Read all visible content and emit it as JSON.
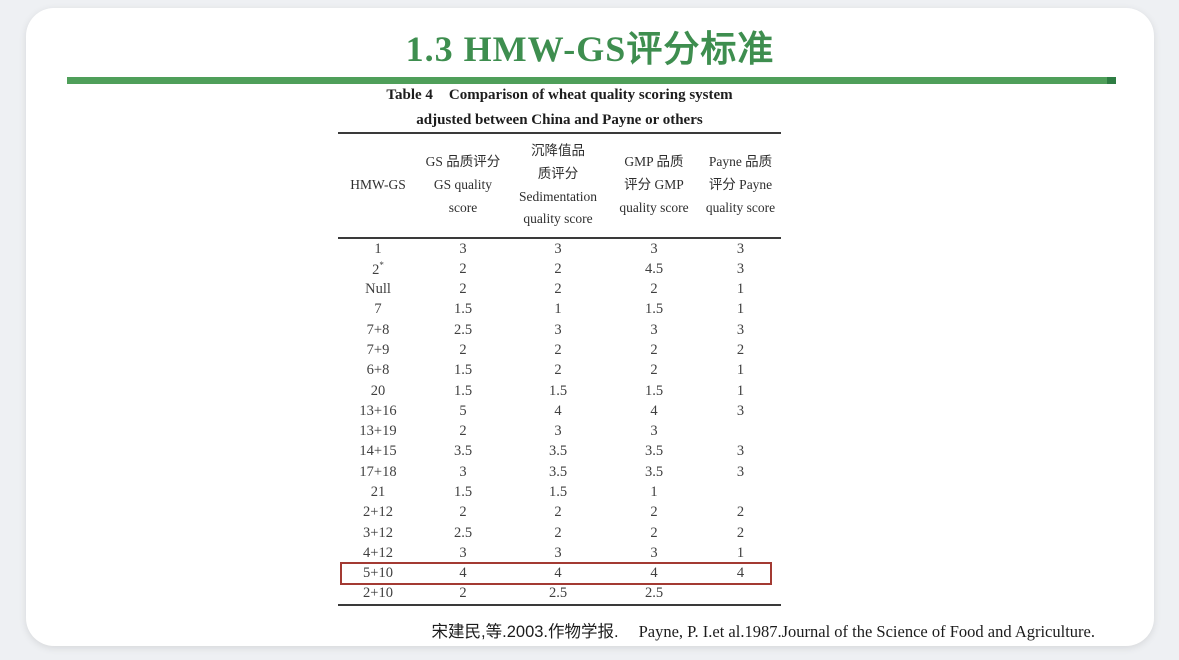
{
  "slide": {
    "title": "1.3 HMW-GS评分标准",
    "citation_cn": "宋建民,等.2003.作物学报.",
    "citation_en": "Payne, P. I.et al.1987.Journal of the Science of Food and Agriculture."
  },
  "table": {
    "caption_label": "Table 4",
    "caption_title": "Comparison of wheat quality scoring system",
    "caption_line2": "adjusted between China and Payne or others",
    "headers": [
      "HMW-GS",
      "GS 品质评分\nGS quality\nscore",
      "沉降值品\n质评分\nSedimentation\nquality score",
      "GMP 品质\n评分 GMP\nquality score",
      "Payne 品质\n评分 Payne\nquality score"
    ],
    "rows": [
      {
        "label": "1",
        "values": [
          "3",
          "3",
          "3",
          "3"
        ],
        "highlight": false
      },
      {
        "label": "2",
        "sup": "*",
        "values": [
          "2",
          "2",
          "4.5",
          "3"
        ],
        "highlight": false
      },
      {
        "label": "Null",
        "values": [
          "2",
          "2",
          "2",
          "1"
        ],
        "highlight": false
      },
      {
        "label": "7",
        "values": [
          "1.5",
          "1",
          "1.5",
          "1"
        ],
        "highlight": false
      },
      {
        "label": "7+8",
        "values": [
          "2.5",
          "3",
          "3",
          "3"
        ],
        "highlight": false
      },
      {
        "label": "7+9",
        "values": [
          "2",
          "2",
          "2",
          "2"
        ],
        "highlight": false
      },
      {
        "label": "6+8",
        "values": [
          "1.5",
          "2",
          "2",
          "1"
        ],
        "highlight": false
      },
      {
        "label": "20",
        "values": [
          "1.5",
          "1.5",
          "1.5",
          "1"
        ],
        "highlight": false
      },
      {
        "label": "13+16",
        "values": [
          "5",
          "4",
          "4",
          "3"
        ],
        "highlight": false
      },
      {
        "label": "13+19",
        "values": [
          "2",
          "3",
          "3",
          ""
        ],
        "highlight": false
      },
      {
        "label": "14+15",
        "values": [
          "3.5",
          "3.5",
          "3.5",
          "3"
        ],
        "highlight": false
      },
      {
        "label": "17+18",
        "values": [
          "3",
          "3.5",
          "3.5",
          "3"
        ],
        "highlight": false
      },
      {
        "label": "21",
        "values": [
          "1.5",
          "1.5",
          "1",
          ""
        ],
        "highlight": false
      },
      {
        "label": "2+12",
        "values": [
          "2",
          "2",
          "2",
          "2"
        ],
        "highlight": false
      },
      {
        "label": "3+12",
        "values": [
          "2.5",
          "2",
          "2",
          "2"
        ],
        "highlight": false
      },
      {
        "label": "4+12",
        "values": [
          "3",
          "3",
          "3",
          "1"
        ],
        "highlight": false
      },
      {
        "label": "5+10",
        "values": [
          "4",
          "4",
          "4",
          "4"
        ],
        "highlight": true
      },
      {
        "label": "2+10",
        "values": [
          "2",
          "2.5",
          "2.5",
          ""
        ],
        "highlight": false
      }
    ]
  },
  "colors": {
    "title_green": "#3e8e4f",
    "rule_green": "#4f9f5a",
    "rule_end_green": "#2e7d43",
    "highlight_red": "#a33a33",
    "table_line": "#3a3a3a",
    "body_text": "#3f3f3f",
    "page_bg": "#eef0f3",
    "card_bg": "#ffffff"
  }
}
